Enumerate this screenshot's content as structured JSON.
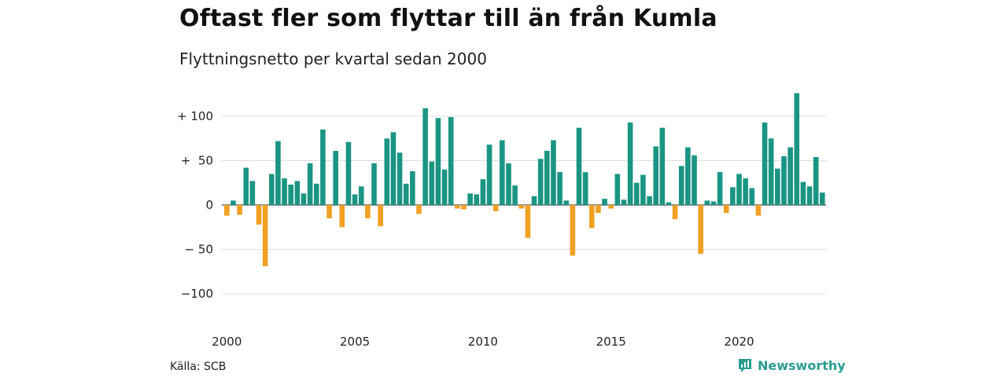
{
  "title": "Oftast fler som flyttar till än från Kumla",
  "subtitle": "Flyttningsnetto per kvartal sedan 2000",
  "source": "Källa: SCB",
  "brand": {
    "name": "Newsworthy",
    "icon": "newsworthy-logo-icon"
  },
  "colors": {
    "positive": "#1a9583",
    "negative": "#f0a023",
    "grid": "#dddddd",
    "text": "#222222"
  },
  "chart_data": {
    "type": "bar",
    "title": "Oftast fler som flyttar till än från Kumla",
    "subtitle": "Flyttningsnetto per kvartal sedan 2000",
    "xlabel": "",
    "ylabel": "",
    "ylim": [
      -125,
      125
    ],
    "grid": true,
    "y_ticks": [
      {
        "value": 100,
        "label": "+ 100"
      },
      {
        "value": 50,
        "label": "+  50"
      },
      {
        "value": 0,
        "label": "0"
      },
      {
        "value": -50,
        "label": "− 50"
      },
      {
        "value": -100,
        "label": "−100"
      }
    ],
    "x_ticks": [
      {
        "value": 2000,
        "label": "2000"
      },
      {
        "value": 2005,
        "label": "2005"
      },
      {
        "value": 2010,
        "label": "2010"
      },
      {
        "value": 2015,
        "label": "2015"
      },
      {
        "value": 2020,
        "label": "2020"
      }
    ],
    "x_start_year": 2000,
    "periods_per_year": 4,
    "values": [
      -12,
      5,
      -11,
      42,
      27,
      -22,
      -69,
      35,
      72,
      30,
      23,
      27,
      13,
      47,
      24,
      85,
      -15,
      61,
      -25,
      71,
      12,
      21,
      -15,
      47,
      -24,
      75,
      82,
      59,
      24,
      38,
      -10,
      109,
      49,
      98,
      40,
      99,
      -4,
      -5,
      13,
      12,
      29,
      68,
      -7,
      73,
      47,
      22,
      -4,
      -37,
      10,
      52,
      61,
      73,
      37,
      5,
      -57,
      87,
      37,
      -26,
      -9,
      7,
      -4,
      35,
      6,
      93,
      25,
      34,
      10,
      66,
      87,
      3,
      -16,
      44,
      65,
      56,
      -55,
      5,
      4,
      37,
      -9,
      20,
      35,
      30,
      19,
      -12,
      93,
      75,
      41,
      55,
      65,
      126,
      26,
      21,
      54,
      14
    ]
  }
}
